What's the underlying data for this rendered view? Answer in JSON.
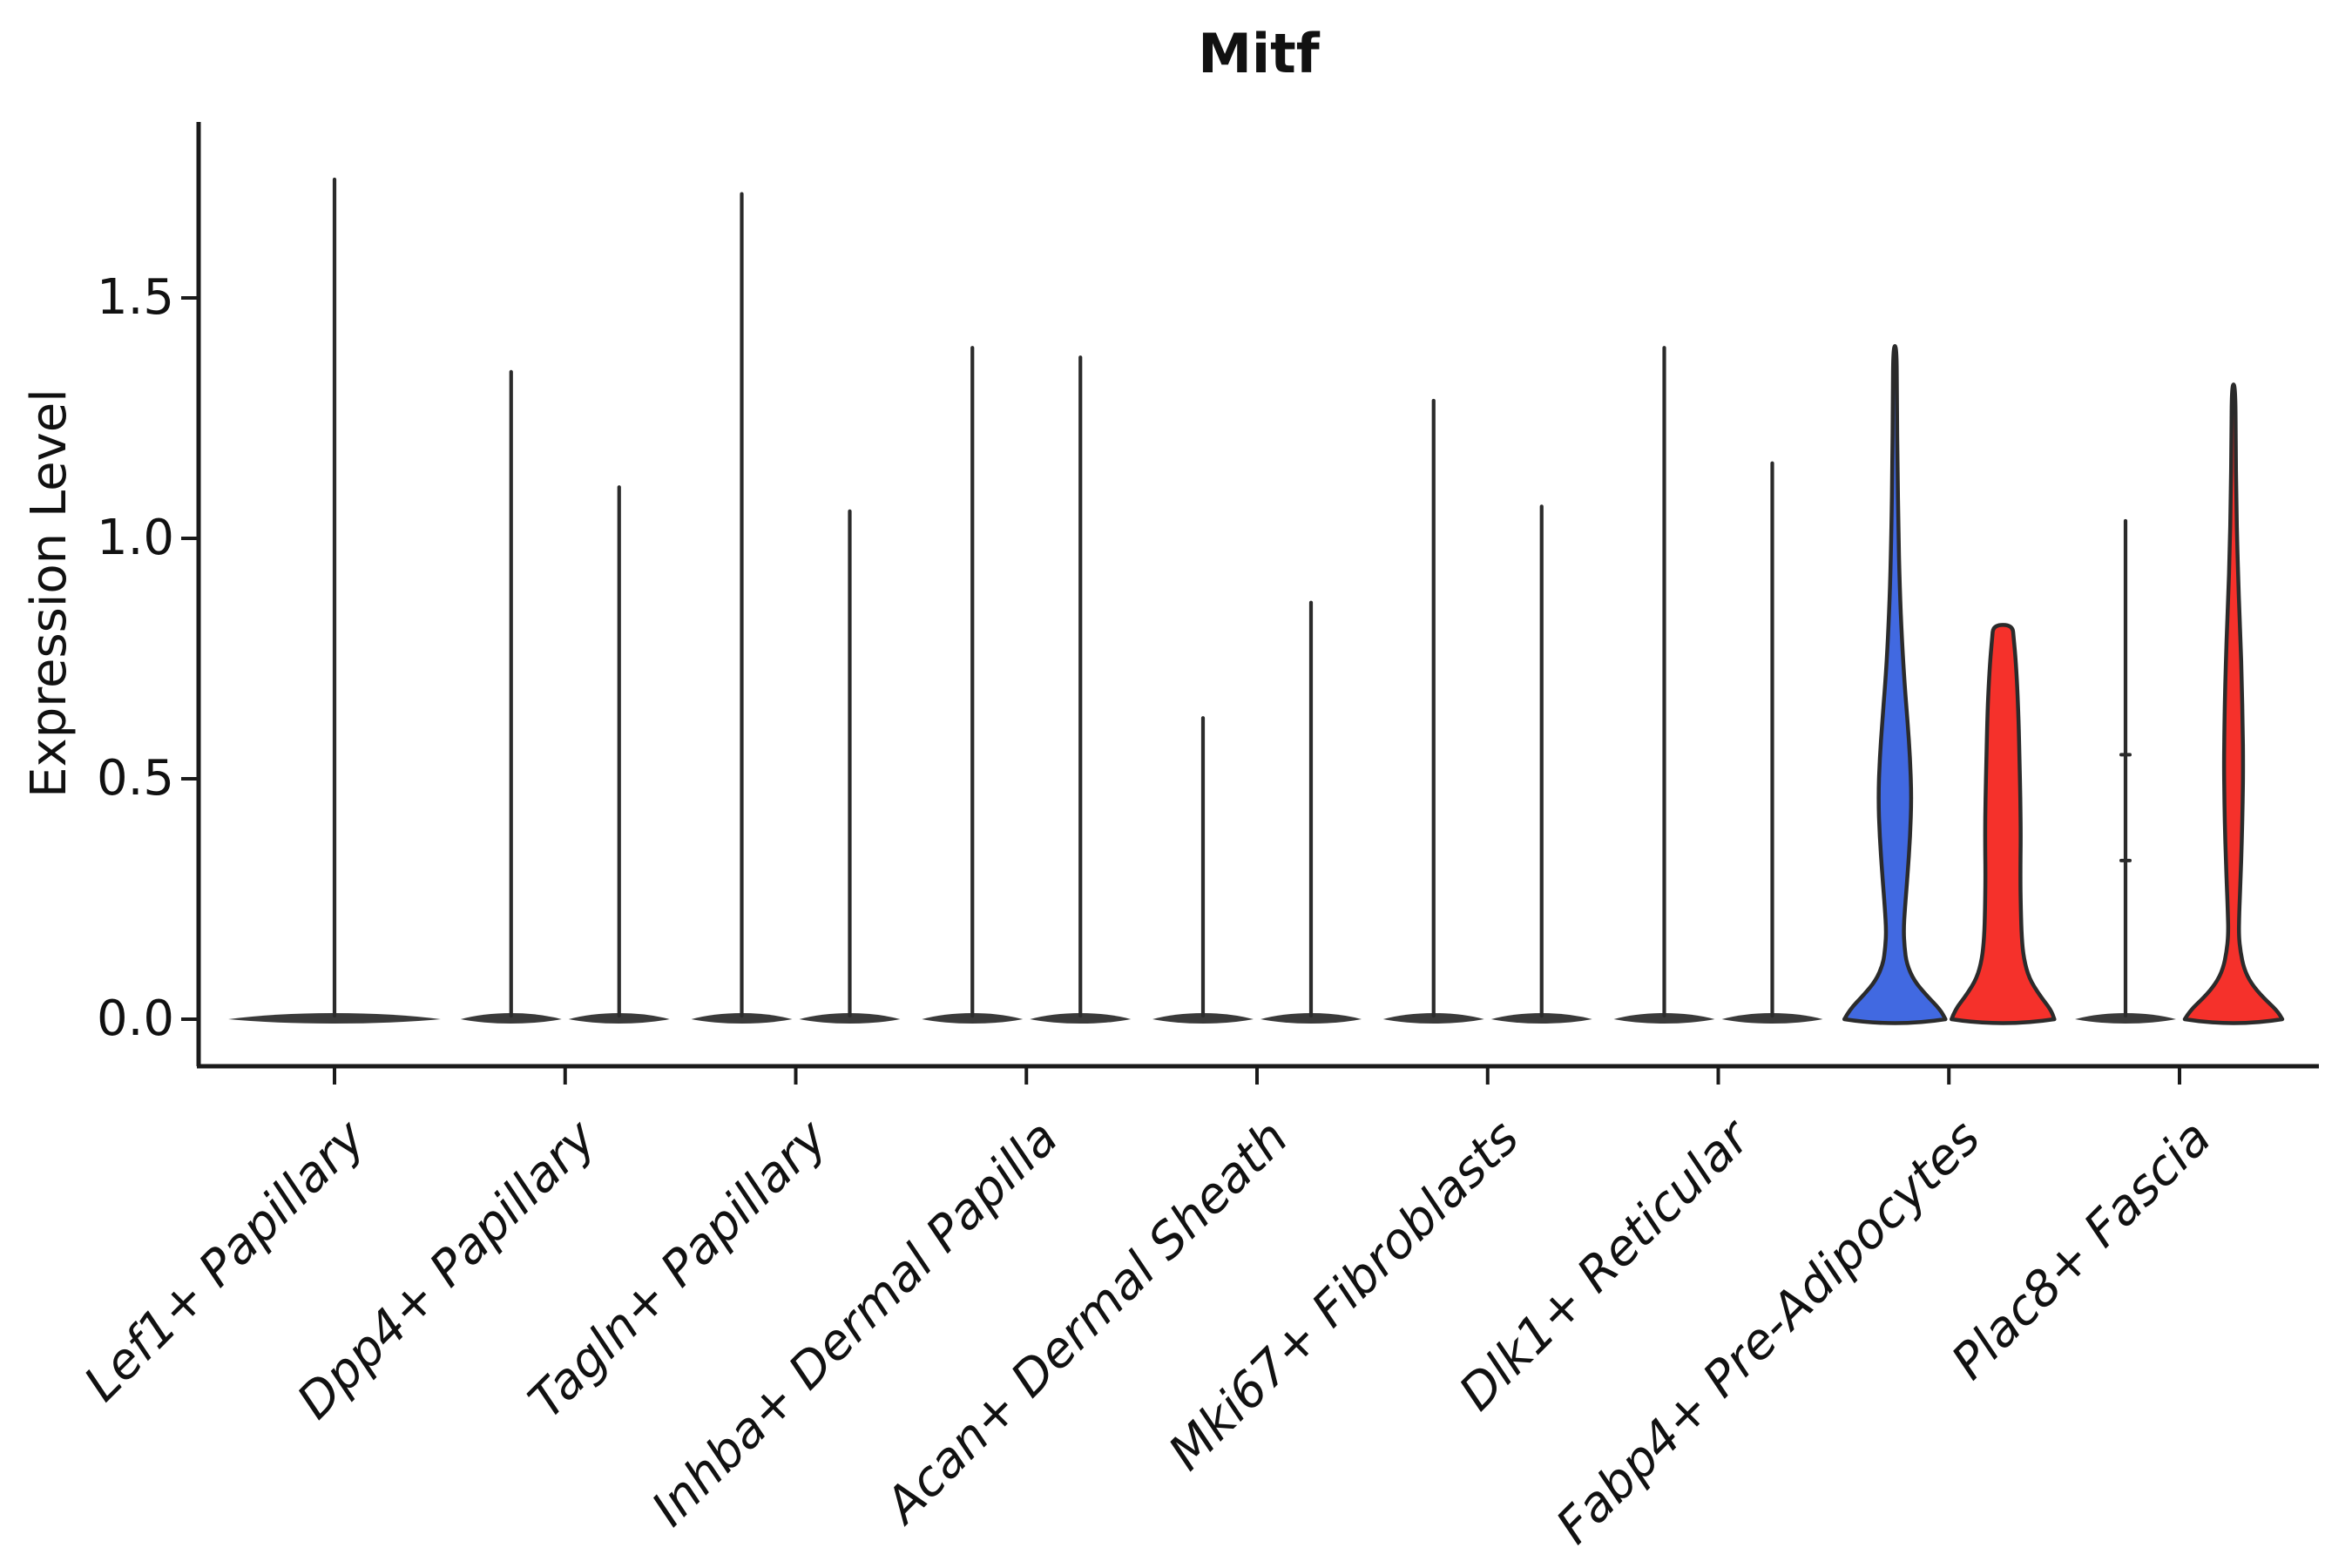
{
  "chart_data": {
    "type": "violin",
    "title": "Mitf",
    "ylabel": "Expression Level",
    "yticks": [
      {
        "label": "0.0",
        "value": 0.0
      },
      {
        "label": "0.5",
        "value": 0.5
      },
      {
        "label": "1.0",
        "value": 1.0
      },
      {
        "label": "1.5",
        "value": 1.5
      }
    ],
    "ylim": [
      -0.09,
      1.87
    ],
    "grid": false,
    "legend_position": "none",
    "colors": {
      "blue": "#4169E1",
      "red": "#F5312B",
      "line": "#2B2B2B",
      "axis": "#1a1a1a"
    },
    "categories": [
      {
        "label": "Lef1+ Papillary",
        "violins": [
          {
            "pos": "full",
            "style": "line",
            "color": "line",
            "peak": 1.75
          }
        ]
      },
      {
        "label": "Dpp4+ Papillary",
        "violins": [
          {
            "pos": "left",
            "style": "line",
            "color": "line",
            "peak": 1.35
          },
          {
            "pos": "right",
            "style": "line",
            "color": "line",
            "peak": 1.11
          }
        ]
      },
      {
        "label": "Tagln+ Papillary",
        "violins": [
          {
            "pos": "left",
            "style": "line",
            "color": "line",
            "peak": 1.72
          },
          {
            "pos": "right",
            "style": "line",
            "color": "line",
            "peak": 1.06
          }
        ]
      },
      {
        "label": "Inhba+ Dermal Papilla",
        "violins": [
          {
            "pos": "left",
            "style": "line",
            "color": "line",
            "peak": 1.4
          },
          {
            "pos": "right",
            "style": "line",
            "color": "line",
            "peak": 1.38
          }
        ]
      },
      {
        "label": "Acan+ Dermal Sheath",
        "violins": [
          {
            "pos": "left",
            "style": "line",
            "color": "line",
            "peak": 0.63
          },
          {
            "pos": "right",
            "style": "line",
            "color": "line",
            "peak": 0.87
          }
        ]
      },
      {
        "label": "Mki67+ Fibroblasts",
        "violins": [
          {
            "pos": "left",
            "style": "line",
            "color": "line",
            "peak": 1.29
          },
          {
            "pos": "right",
            "style": "line",
            "color": "line",
            "peak": 1.07
          }
        ]
      },
      {
        "label": "Dlk1+ Reticular",
        "violins": [
          {
            "pos": "left",
            "style": "line",
            "color": "line",
            "peak": 1.4
          },
          {
            "pos": "right",
            "style": "line",
            "color": "line",
            "peak": 1.16
          }
        ]
      },
      {
        "label": "Fabp4+ Pre-Adipocytes",
        "violins": [
          {
            "pos": "left",
            "style": "filled",
            "color": "blue",
            "peak": 1.4,
            "top": "point",
            "profile": [
              [
                0.0,
                58
              ],
              [
                0.02,
                52
              ],
              [
                0.05,
                36
              ],
              [
                0.08,
                22
              ],
              [
                0.115,
                13.5
              ],
              [
                0.15,
                11
              ],
              [
                0.185,
                10
              ],
              [
                0.23,
                11.5
              ],
              [
                0.3,
                14.5
              ],
              [
                0.38,
                17.5
              ],
              [
                0.46,
                19
              ],
              [
                0.54,
                17.5
              ],
              [
                0.62,
                14.5
              ],
              [
                0.7,
                11
              ],
              [
                0.79,
                8
              ],
              [
                0.9,
                5.5
              ],
              [
                1.02,
                4
              ],
              [
                1.15,
                3
              ],
              [
                1.28,
                2.4
              ],
              [
                1.4,
                2
              ]
            ]
          },
          {
            "pos": "right",
            "style": "filled",
            "color": "red",
            "peak": 0.82,
            "top": "flat",
            "profile": [
              [
                0.0,
                59
              ],
              [
                0.02,
                55
              ],
              [
                0.05,
                42
              ],
              [
                0.085,
                30
              ],
              [
                0.125,
                24
              ],
              [
                0.17,
                21.5
              ],
              [
                0.23,
                20.5
              ],
              [
                0.3,
                20
              ],
              [
                0.38,
                20.5
              ],
              [
                0.46,
                20
              ],
              [
                0.54,
                19
              ],
              [
                0.62,
                18
              ],
              [
                0.69,
                16.5
              ],
              [
                0.75,
                14.5
              ],
              [
                0.79,
                12.5
              ],
              [
                0.82,
                11
              ]
            ]
          }
        ]
      },
      {
        "label": "Plac8+ Fascia",
        "violins": [
          {
            "pos": "left",
            "style": "line",
            "color": "line",
            "peak": 1.04,
            "nubs": [
              0.55,
              0.33
            ]
          },
          {
            "pos": "right",
            "style": "filled",
            "color": "red",
            "peak": 1.32,
            "top": "point",
            "profile": [
              [
                0.0,
                56
              ],
              [
                0.018,
                50
              ],
              [
                0.045,
                34
              ],
              [
                0.075,
                20
              ],
              [
                0.105,
                12
              ],
              [
                0.14,
                8
              ],
              [
                0.175,
                6
              ],
              [
                0.22,
                6.5
              ],
              [
                0.29,
                8
              ],
              [
                0.37,
                9.5
              ],
              [
                0.45,
                10.5
              ],
              [
                0.53,
                11
              ],
              [
                0.61,
                10.5
              ],
              [
                0.7,
                9.5
              ],
              [
                0.79,
                8
              ],
              [
                0.88,
                6
              ],
              [
                0.97,
                4.5
              ],
              [
                1.08,
                3.2
              ],
              [
                1.2,
                2.5
              ],
              [
                1.32,
                2
              ]
            ]
          }
        ]
      }
    ]
  }
}
